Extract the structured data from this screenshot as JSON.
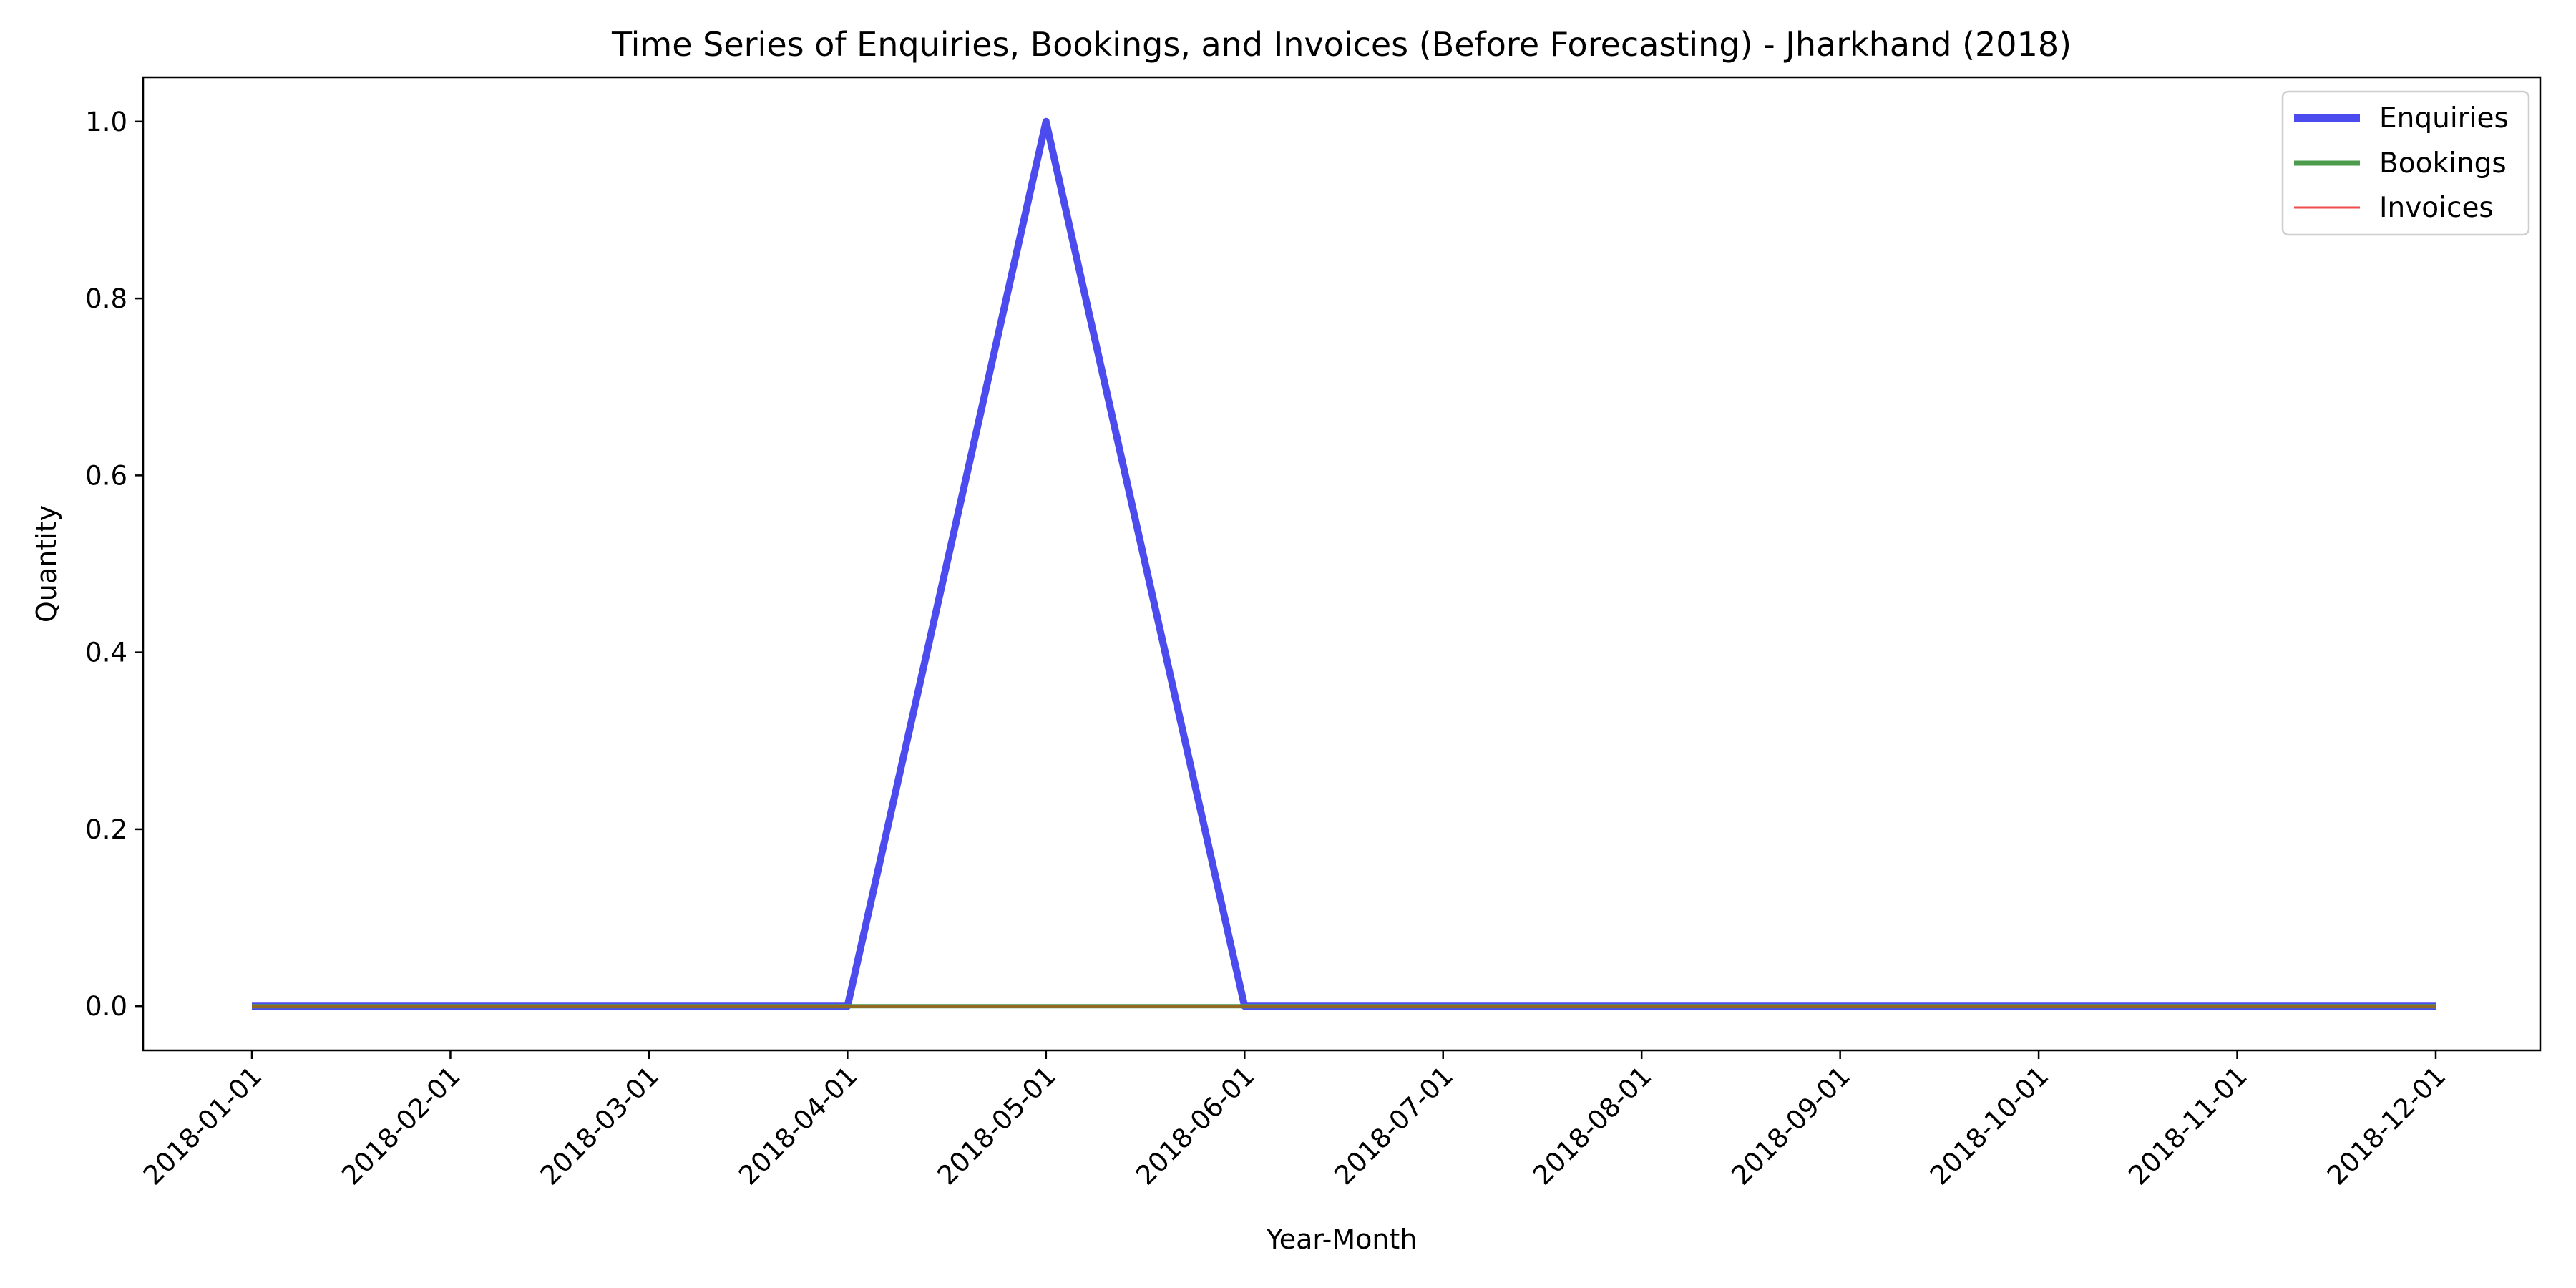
{
  "chart_data": {
    "type": "line",
    "title": "Time Series of Enquiries, Bookings, and Invoices (Before Forecasting) - Jharkhand (2018)",
    "xlabel": "Year-Month",
    "ylabel": "Quantity",
    "x": [
      "2018-01-01",
      "2018-02-01",
      "2018-03-01",
      "2018-04-01",
      "2018-05-01",
      "2018-06-01",
      "2018-07-01",
      "2018-08-01",
      "2018-09-01",
      "2018-10-01",
      "2018-11-01",
      "2018-12-01"
    ],
    "yticks": [
      "0.0",
      "0.2",
      "0.4",
      "0.6",
      "0.8",
      "1.0"
    ],
    "ylim": [
      -0.05,
      1.05
    ],
    "grid": false,
    "legend_position": "top-right",
    "series": [
      {
        "name": "Enquiries",
        "color": "#0000ee",
        "values": [
          0,
          0,
          0,
          0,
          1,
          0,
          0,
          0,
          0,
          0,
          0,
          0
        ]
      },
      {
        "name": "Bookings",
        "color": "#008000",
        "values": [
          0,
          0,
          0,
          0,
          0,
          0,
          0,
          0,
          0,
          0,
          0,
          0
        ]
      },
      {
        "name": "Invoices",
        "color": "#ff0000",
        "values": [
          0,
          0,
          0,
          0,
          0,
          0,
          0,
          0,
          0,
          0,
          0,
          0
        ]
      }
    ]
  }
}
